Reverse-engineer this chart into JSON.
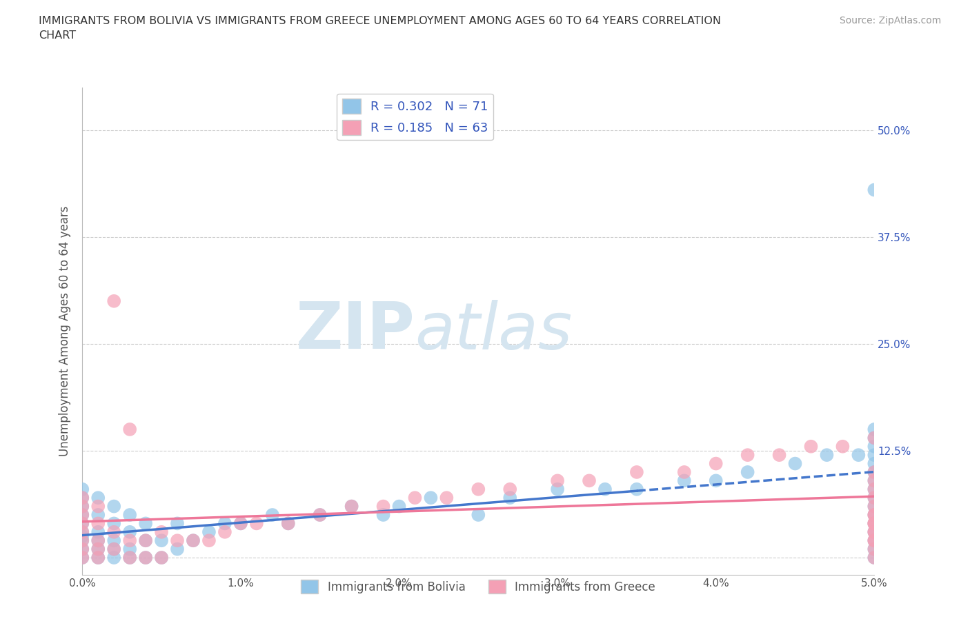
{
  "title": "IMMIGRANTS FROM BOLIVIA VS IMMIGRANTS FROM GREECE UNEMPLOYMENT AMONG AGES 60 TO 64 YEARS CORRELATION\nCHART",
  "ylabel": "Unemployment Among Ages 60 to 64 years",
  "source_text": "Source: ZipAtlas.com",
  "xlim": [
    0.0,
    0.05
  ],
  "ylim": [
    -0.02,
    0.55
  ],
  "xticks": [
    0.0,
    0.01,
    0.02,
    0.03,
    0.04,
    0.05
  ],
  "xticklabels": [
    "0.0%",
    "1.0%",
    "2.0%",
    "3.0%",
    "4.0%",
    "5.0%"
  ],
  "yticks": [
    0.0,
    0.125,
    0.25,
    0.375,
    0.5
  ],
  "yticklabels": [
    "",
    "12.5%",
    "25.0%",
    "37.5%",
    "50.0%"
  ],
  "bolivia_color": "#92C5E8",
  "greece_color": "#F4A0B5",
  "bolivia_line_color": "#4477CC",
  "greece_line_color": "#EE7799",
  "R_bolivia": 0.302,
  "N_bolivia": 71,
  "R_greece": 0.185,
  "N_greece": 63,
  "legend_text_color": "#3355BB",
  "watermark": "ZIPatlas",
  "watermark_color": "#D5E5F0",
  "background_color": "#FFFFFF",
  "bolivia_x": [
    0.0,
    0.0,
    0.0,
    0.0,
    0.0,
    0.0,
    0.0,
    0.0,
    0.0,
    0.0,
    0.001,
    0.001,
    0.001,
    0.001,
    0.001,
    0.001,
    0.002,
    0.002,
    0.002,
    0.002,
    0.002,
    0.003,
    0.003,
    0.003,
    0.003,
    0.004,
    0.004,
    0.004,
    0.005,
    0.005,
    0.006,
    0.006,
    0.007,
    0.008,
    0.009,
    0.01,
    0.012,
    0.013,
    0.015,
    0.017,
    0.019,
    0.02,
    0.022,
    0.025,
    0.027,
    0.03,
    0.033,
    0.035,
    0.038,
    0.04,
    0.042,
    0.045,
    0.047,
    0.049,
    0.05,
    0.05,
    0.05,
    0.05,
    0.05,
    0.05,
    0.05,
    0.05,
    0.05,
    0.05,
    0.05,
    0.05,
    0.05,
    0.05,
    0.05,
    0.05,
    0.05
  ],
  "bolivia_y": [
    0.0,
    0.01,
    0.02,
    0.025,
    0.03,
    0.04,
    0.05,
    0.06,
    0.07,
    0.08,
    0.0,
    0.01,
    0.02,
    0.03,
    0.05,
    0.07,
    0.0,
    0.01,
    0.02,
    0.04,
    0.06,
    0.0,
    0.01,
    0.03,
    0.05,
    0.0,
    0.02,
    0.04,
    0.0,
    0.02,
    0.01,
    0.04,
    0.02,
    0.03,
    0.04,
    0.04,
    0.05,
    0.04,
    0.05,
    0.06,
    0.05,
    0.06,
    0.07,
    0.05,
    0.07,
    0.08,
    0.08,
    0.08,
    0.09,
    0.09,
    0.1,
    0.11,
    0.12,
    0.12,
    0.0,
    0.01,
    0.02,
    0.03,
    0.04,
    0.05,
    0.06,
    0.07,
    0.43,
    0.08,
    0.09,
    0.1,
    0.11,
    0.12,
    0.13,
    0.14,
    0.15
  ],
  "greece_x": [
    0.0,
    0.0,
    0.0,
    0.0,
    0.0,
    0.0,
    0.0,
    0.0,
    0.001,
    0.001,
    0.001,
    0.001,
    0.001,
    0.002,
    0.002,
    0.002,
    0.003,
    0.003,
    0.003,
    0.004,
    0.004,
    0.005,
    0.005,
    0.006,
    0.007,
    0.008,
    0.009,
    0.01,
    0.011,
    0.013,
    0.015,
    0.017,
    0.019,
    0.021,
    0.023,
    0.025,
    0.027,
    0.03,
    0.032,
    0.035,
    0.038,
    0.04,
    0.042,
    0.044,
    0.046,
    0.048,
    0.05,
    0.05,
    0.05,
    0.05,
    0.05,
    0.05,
    0.05,
    0.05,
    0.05,
    0.05,
    0.05,
    0.05,
    0.05,
    0.05,
    0.05,
    0.05,
    0.05
  ],
  "greece_y": [
    0.0,
    0.01,
    0.02,
    0.03,
    0.04,
    0.05,
    0.06,
    0.07,
    0.0,
    0.01,
    0.02,
    0.04,
    0.06,
    0.01,
    0.03,
    0.3,
    0.0,
    0.02,
    0.15,
    0.0,
    0.02,
    0.0,
    0.03,
    0.02,
    0.02,
    0.02,
    0.03,
    0.04,
    0.04,
    0.04,
    0.05,
    0.06,
    0.06,
    0.07,
    0.07,
    0.08,
    0.08,
    0.09,
    0.09,
    0.1,
    0.1,
    0.11,
    0.12,
    0.12,
    0.13,
    0.13,
    0.14,
    0.0,
    0.01,
    0.02,
    0.03,
    0.04,
    0.05,
    0.06,
    0.07,
    0.08,
    0.09,
    0.1,
    0.04,
    0.05,
    0.02,
    0.03,
    0.04
  ]
}
